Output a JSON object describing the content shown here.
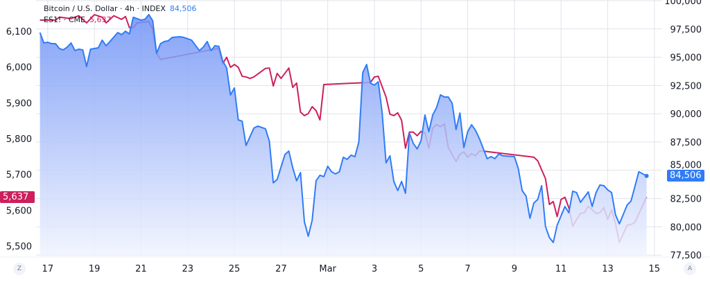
{
  "legend": {
    "btc_label": "Bitcoin / U.S. Dollar · 4h · INDEX",
    "btc_value": "84,506",
    "es_label": "ES1! · CME",
    "es_value": "5,637"
  },
  "badges": {
    "left": "5,637",
    "right": "84,506"
  },
  "corner_buttons": {
    "left": "Z",
    "right": "A"
  },
  "colors": {
    "btc": "#2f7cf6",
    "btc_fill_top": "#6e92f6",
    "btc_fill_bottom": "#f1f4fe",
    "es": "#cc1f5c",
    "grid": "#e0e3eb",
    "text": "#131722"
  },
  "chart_data": {
    "type": "line",
    "title": "",
    "grid": true,
    "x_format": "MM-DD HH:mm",
    "xlim": [
      "02-16 12:00",
      "03-15 08:00"
    ],
    "x_ticks": [
      {
        "at": "02-17 00:00",
        "label": "17"
      },
      {
        "at": "02-19 00:00",
        "label": "19"
      },
      {
        "at": "02-21 00:00",
        "label": "21"
      },
      {
        "at": "02-23 00:00",
        "label": "23"
      },
      {
        "at": "02-25 00:00",
        "label": "25"
      },
      {
        "at": "02-27 00:00",
        "label": "27"
      },
      {
        "at": "03-01 00:00",
        "label": "Mar"
      },
      {
        "at": "03-03 00:00",
        "label": "3"
      },
      {
        "at": "03-05 00:00",
        "label": "5"
      },
      {
        "at": "03-07 00:00",
        "label": "7"
      },
      {
        "at": "03-09 00:00",
        "label": "9"
      },
      {
        "at": "03-11 00:00",
        "label": "11"
      },
      {
        "at": "03-13 00:00",
        "label": "13"
      },
      {
        "at": "03-15 00:00",
        "label": "15"
      }
    ],
    "left_axis": {
      "ylim": [
        5471,
        6187
      ],
      "ticks": [
        6100,
        6000,
        5900,
        5800,
        5700,
        5600,
        5500
      ],
      "tick_labels": [
        "6,100",
        "6,000",
        "5,900",
        "5,800",
        "5,700",
        "5,600",
        "5,500"
      ]
    },
    "right_axis": {
      "ylim": [
        77390,
        100060
      ],
      "ticks": [
        100000,
        97500,
        95000,
        92500,
        90000,
        87500,
        85000,
        82500,
        80000,
        77500
      ],
      "tick_labels": [
        "100,000",
        "97,500",
        "95,000",
        "92,500",
        "90,000",
        "87,500",
        "85,000",
        "82,500",
        "80,000",
        "77,500"
      ]
    },
    "series": [
      {
        "name": "Bitcoin / U.S. Dollar · 4h · INDEX",
        "axis": "right",
        "style": "area",
        "points": [
          [
            "02-16 16:00",
            97180
          ],
          [
            "02-16 20:00",
            96260
          ],
          [
            "02-17 00:00",
            96320
          ],
          [
            "02-17 04:00",
            96200
          ],
          [
            "02-17 08:00",
            96200
          ],
          [
            "02-17 12:00",
            95770
          ],
          [
            "02-17 16:00",
            95650
          ],
          [
            "02-17 20:00",
            95890
          ],
          [
            "02-18 00:00",
            96260
          ],
          [
            "02-18 04:00",
            95590
          ],
          [
            "02-18 08:00",
            95710
          ],
          [
            "02-18 12:00",
            95650
          ],
          [
            "02-18 16:00",
            94180
          ],
          [
            "02-18 20:00",
            95710
          ],
          [
            "02-19 04:00",
            95830
          ],
          [
            "02-19 08:00",
            96510
          ],
          [
            "02-19 12:00",
            96020
          ],
          [
            "02-19 16:00",
            96390
          ],
          [
            "02-20 00:00",
            97180
          ],
          [
            "02-20 04:00",
            97000
          ],
          [
            "02-20 08:00",
            97300
          ],
          [
            "02-20 12:00",
            97060
          ],
          [
            "02-20 16:00",
            98530
          ],
          [
            "02-20 20:00",
            98410
          ],
          [
            "02-21 00:00",
            98280
          ],
          [
            "02-21 04:00",
            98350
          ],
          [
            "02-21 08:00",
            98770
          ],
          [
            "02-21 12:00",
            98220
          ],
          [
            "02-21 16:00",
            95340
          ],
          [
            "02-21 20:00",
            96200
          ],
          [
            "02-22 00:00",
            96390
          ],
          [
            "02-22 04:00",
            96450
          ],
          [
            "02-22 08:00",
            96750
          ],
          [
            "02-22 16:00",
            96810
          ],
          [
            "02-22 20:00",
            96750
          ],
          [
            "02-23 00:00",
            96630
          ],
          [
            "02-23 04:00",
            96510
          ],
          [
            "02-23 12:00",
            95590
          ],
          [
            "02-23 16:00",
            95890
          ],
          [
            "02-23 20:00",
            96390
          ],
          [
            "02-24 00:00",
            95590
          ],
          [
            "02-24 04:00",
            96020
          ],
          [
            "02-24 08:00",
            95960
          ],
          [
            "02-24 12:00",
            94670
          ],
          [
            "02-24 16:00",
            94060
          ],
          [
            "02-24 20:00",
            91670
          ],
          [
            "02-25 00:00",
            92280
          ],
          [
            "02-25 04:00",
            89460
          ],
          [
            "02-25 08:00",
            89340
          ],
          [
            "02-25 12:00",
            87190
          ],
          [
            "02-25 20:00",
            88730
          ],
          [
            "02-26 00:00",
            88910
          ],
          [
            "02-26 08:00",
            88670
          ],
          [
            "02-26 12:00",
            87560
          ],
          [
            "02-26 16:00",
            83890
          ],
          [
            "02-26 20:00",
            84190
          ],
          [
            "02-27 04:00",
            86400
          ],
          [
            "02-27 08:00",
            86700
          ],
          [
            "02-27 12:00",
            85230
          ],
          [
            "02-27 16:00",
            84070
          ],
          [
            "02-27 20:00",
            84800
          ],
          [
            "02-28 00:00",
            80450
          ],
          [
            "02-28 04:00",
            79170
          ],
          [
            "02-28 08:00",
            80580
          ],
          [
            "02-28 12:00",
            84070
          ],
          [
            "02-28 16:00",
            84560
          ],
          [
            "02-28 20:00",
            84440
          ],
          [
            "03-01 00:00",
            85360
          ],
          [
            "03-01 04:00",
            84870
          ],
          [
            "03-01 08:00",
            84680
          ],
          [
            "03-01 12:00",
            84870
          ],
          [
            "03-01 16:00",
            86150
          ],
          [
            "03-01 20:00",
            85970
          ],
          [
            "03-02 00:00",
            86340
          ],
          [
            "03-02 04:00",
            86210
          ],
          [
            "03-02 08:00",
            87500
          ],
          [
            "03-02 12:00",
            93630
          ],
          [
            "03-02 16:00",
            94360
          ],
          [
            "03-02 20:00",
            92710
          ],
          [
            "03-03 00:00",
            92530
          ],
          [
            "03-03 04:00",
            92830
          ],
          [
            "03-03 08:00",
            90070
          ],
          [
            "03-03 12:00",
            85660
          ],
          [
            "03-03 16:00",
            86280
          ],
          [
            "03-03 20:00",
            84010
          ],
          [
            "03-04 00:00",
            83210
          ],
          [
            "03-04 04:00",
            84010
          ],
          [
            "03-04 08:00",
            82970
          ],
          [
            "03-04 12:00",
            88300
          ],
          [
            "03-04 16:00",
            87380
          ],
          [
            "03-04 20:00",
            86890
          ],
          [
            "03-05 00:00",
            87620
          ],
          [
            "03-05 04:00",
            89890
          ],
          [
            "03-05 08:00",
            88420
          ],
          [
            "03-05 12:00",
            89890
          ],
          [
            "03-05 16:00",
            90560
          ],
          [
            "03-05 20:00",
            91670
          ],
          [
            "03-06 00:00",
            91480
          ],
          [
            "03-06 04:00",
            91480
          ],
          [
            "03-06 08:00",
            90930
          ],
          [
            "03-06 12:00",
            88600
          ],
          [
            "03-06 16:00",
            90070
          ],
          [
            "03-06 20:00",
            87010
          ],
          [
            "03-07 00:00",
            88420
          ],
          [
            "03-07 04:00",
            89030
          ],
          [
            "03-07 08:00",
            88540
          ],
          [
            "03-07 12:00",
            87810
          ],
          [
            "03-07 20:00",
            86030
          ],
          [
            "03-08 00:00",
            86210
          ],
          [
            "03-08 04:00",
            86030
          ],
          [
            "03-08 08:00",
            86460
          ],
          [
            "03-08 12:00",
            86280
          ],
          [
            "03-09 00:00",
            86210
          ],
          [
            "03-09 04:00",
            85170
          ],
          [
            "03-09 08:00",
            83210
          ],
          [
            "03-09 12:00",
            82720
          ],
          [
            "03-09 16:00",
            80760
          ],
          [
            "03-09 20:00",
            82110
          ],
          [
            "03-10 00:00",
            82420
          ],
          [
            "03-10 04:00",
            83640
          ],
          [
            "03-10 08:00",
            80030
          ],
          [
            "03-10 12:00",
            79050
          ],
          [
            "03-10 16:00",
            78620
          ],
          [
            "03-10 20:00",
            80150
          ],
          [
            "03-11 04:00",
            81800
          ],
          [
            "03-11 08:00",
            81250
          ],
          [
            "03-11 12:00",
            83150
          ],
          [
            "03-11 16:00",
            83030
          ],
          [
            "03-11 20:00",
            82170
          ],
          [
            "03-12 04:00",
            83090
          ],
          [
            "03-12 08:00",
            81800
          ],
          [
            "03-12 12:00",
            83030
          ],
          [
            "03-12 16:00",
            83700
          ],
          [
            "03-12 20:00",
            83640
          ],
          [
            "03-13 00:00",
            83270
          ],
          [
            "03-13 04:00",
            83030
          ],
          [
            "03-13 08:00",
            81070
          ],
          [
            "03-13 12:00",
            80270
          ],
          [
            "03-13 20:00",
            81930
          ],
          [
            "03-14 00:00",
            82290
          ],
          [
            "03-14 08:00",
            84870
          ],
          [
            "03-14 16:00",
            84506
          ]
        ]
      },
      {
        "name": "ES1! · CME",
        "axis": "left",
        "style": "line",
        "points": [
          [
            "02-16 16:00",
            6131
          ],
          [
            "02-17 08:00",
            6131
          ],
          [
            "02-17 12:00",
            6139
          ],
          [
            "02-18 00:00",
            6135
          ],
          [
            "02-18 08:00",
            6143
          ],
          [
            "02-18 16:00",
            6123
          ],
          [
            "02-19 00:00",
            6146
          ],
          [
            "02-19 08:00",
            6139
          ],
          [
            "02-19 12:00",
            6123
          ],
          [
            "02-19 20:00",
            6143
          ],
          [
            "02-20 04:00",
            6133
          ],
          [
            "02-20 08:00",
            6141
          ],
          [
            "02-20 12:00",
            6110
          ],
          [
            "02-20 16:00",
            6110
          ],
          [
            "02-20 20:00",
            6123
          ],
          [
            "02-21 08:00",
            6127
          ],
          [
            "02-21 12:00",
            6106
          ],
          [
            "02-21 16:00",
            6038
          ],
          [
            "02-21 20:00",
            6021
          ],
          [
            "02-24 08:00",
            6052
          ],
          [
            "02-24 12:00",
            6009
          ],
          [
            "02-24 16:00",
            6027
          ],
          [
            "02-24 20:00",
            5999
          ],
          [
            "02-25 00:00",
            6007
          ],
          [
            "02-25 04:00",
            5999
          ],
          [
            "02-25 08:00",
            5974
          ],
          [
            "02-25 12:00",
            5972
          ],
          [
            "02-25 16:00",
            5968
          ],
          [
            "02-25 20:00",
            5972
          ],
          [
            "02-26 08:00",
            5996
          ],
          [
            "02-26 12:00",
            5997
          ],
          [
            "02-26 16:00",
            5947
          ],
          [
            "02-26 20:00",
            5982
          ],
          [
            "02-27 00:00",
            5968
          ],
          [
            "02-27 08:00",
            5997
          ],
          [
            "02-27 12:00",
            5943
          ],
          [
            "02-27 16:00",
            5955
          ],
          [
            "02-27 20:00",
            5874
          ],
          [
            "02-28 00:00",
            5864
          ],
          [
            "02-28 04:00",
            5870
          ],
          [
            "02-28 08:00",
            5889
          ],
          [
            "02-28 12:00",
            5878
          ],
          [
            "02-28 16:00",
            5852
          ],
          [
            "02-28 20:00",
            5951
          ],
          [
            "03-02 20:00",
            5957
          ],
          [
            "03-03 00:00",
            5972
          ],
          [
            "03-03 04:00",
            5974
          ],
          [
            "03-03 12:00",
            5916
          ],
          [
            "03-03 16:00",
            5868
          ],
          [
            "03-03 20:00",
            5864
          ],
          [
            "03-04 00:00",
            5872
          ],
          [
            "03-04 04:00",
            5851
          ],
          [
            "03-04 08:00",
            5773
          ],
          [
            "03-04 12:00",
            5818
          ],
          [
            "03-04 16:00",
            5818
          ],
          [
            "03-04 20:00",
            5808
          ],
          [
            "03-05 00:00",
            5820
          ],
          [
            "03-05 04:00",
            5816
          ],
          [
            "03-05 08:00",
            5773
          ],
          [
            "03-05 12:00",
            5829
          ],
          [
            "03-05 16:00",
            5839
          ],
          [
            "03-05 20:00",
            5833
          ],
          [
            "03-06 00:00",
            5841
          ],
          [
            "03-06 04:00",
            5775
          ],
          [
            "03-06 12:00",
            5736
          ],
          [
            "03-06 16:00",
            5756
          ],
          [
            "03-06 20:00",
            5763
          ],
          [
            "03-07 00:00",
            5748
          ],
          [
            "03-07 04:00",
            5758
          ],
          [
            "03-07 08:00",
            5752
          ],
          [
            "03-07 12:00",
            5765
          ],
          [
            "03-07 16:00",
            5765
          ],
          [
            "03-09 20:00",
            5748
          ],
          [
            "03-10 00:00",
            5738
          ],
          [
            "03-10 08:00",
            5688
          ],
          [
            "03-10 12:00",
            5616
          ],
          [
            "03-10 16:00",
            5624
          ],
          [
            "03-10 20:00",
            5582
          ],
          [
            "03-11 00:00",
            5630
          ],
          [
            "03-11 04:00",
            5636
          ],
          [
            "03-11 08:00",
            5607
          ],
          [
            "03-11 12:00",
            5555
          ],
          [
            "03-11 16:00",
            5574
          ],
          [
            "03-11 20:00",
            5591
          ],
          [
            "03-12 00:00",
            5593
          ],
          [
            "03-12 04:00",
            5611
          ],
          [
            "03-12 12:00",
            5591
          ],
          [
            "03-12 16:00",
            5593
          ],
          [
            "03-12 20:00",
            5607
          ],
          [
            "03-13 00:00",
            5574
          ],
          [
            "03-13 04:00",
            5601
          ],
          [
            "03-13 08:00",
            5562
          ],
          [
            "03-13 12:00",
            5510
          ],
          [
            "03-13 20:00",
            5558
          ],
          [
            "03-14 00:00",
            5560
          ],
          [
            "03-14 04:00",
            5566
          ],
          [
            "03-14 16:00",
            5637
          ]
        ]
      }
    ]
  }
}
